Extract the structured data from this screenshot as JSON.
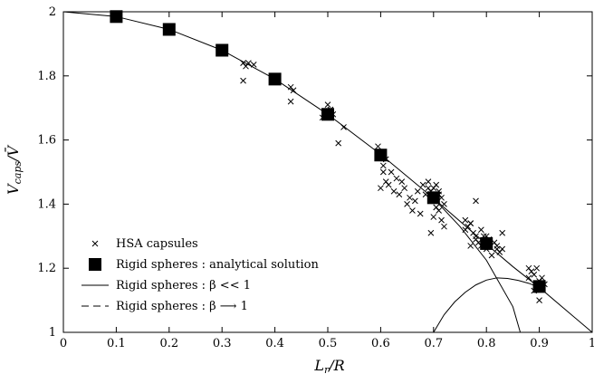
{
  "chart_data": {
    "type": "scatter",
    "xlabel": "L_r/R",
    "ylabel": "V_caps/V̄",
    "xlim": [
      0,
      1
    ],
    "ylim": [
      1,
      2
    ],
    "x_ticks": [
      0,
      0.1,
      0.2,
      0.3,
      0.4,
      0.5,
      0.6,
      0.7,
      0.8,
      0.9,
      1
    ],
    "x_tick_labels": [
      "0",
      "0.1",
      "0.2",
      "0.3",
      "0.4",
      "0.5",
      "0.6",
      "0.7",
      "0.8",
      "0.9",
      "1"
    ],
    "y_ticks": [
      1,
      1.2,
      1.4,
      1.6,
      1.8,
      2
    ],
    "y_tick_labels": [
      "1",
      "1.2",
      "1.4",
      "1.6",
      "1.8",
      "2"
    ],
    "grid": false,
    "legend_position": "bottom-left",
    "series": [
      {
        "name": "HSA capsules",
        "marker": "x",
        "x": [
          0.34,
          0.345,
          0.35,
          0.36,
          0.34,
          0.43,
          0.435,
          0.43,
          0.49,
          0.5,
          0.505,
          0.51,
          0.52,
          0.53,
          0.595,
          0.6,
          0.605,
          0.61,
          0.6,
          0.605,
          0.61,
          0.62,
          0.615,
          0.625,
          0.63,
          0.635,
          0.64,
          0.645,
          0.65,
          0.655,
          0.66,
          0.665,
          0.67,
          0.675,
          0.68,
          0.685,
          0.69,
          0.695,
          0.7,
          0.705,
          0.71,
          0.7,
          0.695,
          0.705,
          0.71,
          0.715,
          0.72,
          0.69,
          0.7,
          0.71,
          0.72,
          0.705,
          0.715,
          0.76,
          0.765,
          0.77,
          0.775,
          0.78,
          0.785,
          0.79,
          0.795,
          0.8,
          0.805,
          0.81,
          0.815,
          0.82,
          0.825,
          0.83,
          0.76,
          0.77,
          0.78,
          0.77,
          0.79,
          0.8,
          0.82,
          0.83,
          0.78,
          0.88,
          0.885,
          0.89,
          0.895,
          0.9,
          0.905,
          0.91,
          0.89,
          0.9,
          0.905,
          0.88
        ],
        "y": [
          1.84,
          1.83,
          1.84,
          1.835,
          1.785,
          1.765,
          1.755,
          1.72,
          1.67,
          1.71,
          1.695,
          1.68,
          1.59,
          1.64,
          1.58,
          1.56,
          1.5,
          1.47,
          1.45,
          1.52,
          1.54,
          1.5,
          1.46,
          1.44,
          1.48,
          1.43,
          1.47,
          1.45,
          1.4,
          1.42,
          1.38,
          1.41,
          1.44,
          1.37,
          1.46,
          1.43,
          1.45,
          1.44,
          1.41,
          1.39,
          1.43,
          1.36,
          1.31,
          1.46,
          1.38,
          1.42,
          1.33,
          1.47,
          1.45,
          1.44,
          1.4,
          1.39,
          1.35,
          1.35,
          1.33,
          1.34,
          1.31,
          1.3,
          1.28,
          1.27,
          1.3,
          1.26,
          1.29,
          1.24,
          1.28,
          1.27,
          1.25,
          1.26,
          1.32,
          1.34,
          1.29,
          1.27,
          1.32,
          1.3,
          1.26,
          1.31,
          1.41,
          1.2,
          1.19,
          1.18,
          1.2,
          1.16,
          1.17,
          1.15,
          1.13,
          1.1,
          1.14,
          1.17
        ]
      },
      {
        "name": "Rigid spheres : analytical solution",
        "marker": "filled-square",
        "x": [
          0.1,
          0.2,
          0.3,
          0.4,
          0.5,
          0.6,
          0.7,
          0.8,
          0.9
        ],
        "y": [
          1.985,
          1.945,
          1.88,
          1.79,
          1.68,
          1.553,
          1.42,
          1.277,
          1.143
        ]
      },
      {
        "name": "Rigid spheres : β << 1",
        "line": "solid",
        "x": [
          0,
          0.1,
          0.2,
          0.3,
          0.4,
          0.5,
          0.6,
          0.7,
          0.8,
          0.85,
          0.9,
          0.95,
          1.0
        ],
        "y": [
          2.0,
          1.985,
          1.945,
          1.88,
          1.79,
          1.68,
          1.555,
          1.418,
          1.275,
          1.205,
          1.14,
          1.07,
          1.0
        ]
      },
      {
        "name": "Rigid spheres : β ⟶ 1",
        "line": "dashed",
        "x": [],
        "y": []
      },
      {
        "name": "",
        "line": "solid",
        "x": [
          0.7,
          0.75,
          0.8,
          0.85,
          0.864
        ],
        "y": [
          1.418,
          1.33,
          1.225,
          1.08,
          1.0
        ]
      },
      {
        "name": "",
        "line": "solid",
        "x": [
          0.7,
          0.72,
          0.74,
          0.76,
          0.78,
          0.8,
          0.82,
          0.84,
          0.86,
          0.88,
          0.9
        ],
        "y": [
          1.0,
          1.055,
          1.095,
          1.125,
          1.148,
          1.163,
          1.17,
          1.168,
          1.162,
          1.153,
          1.14
        ]
      }
    ]
  }
}
